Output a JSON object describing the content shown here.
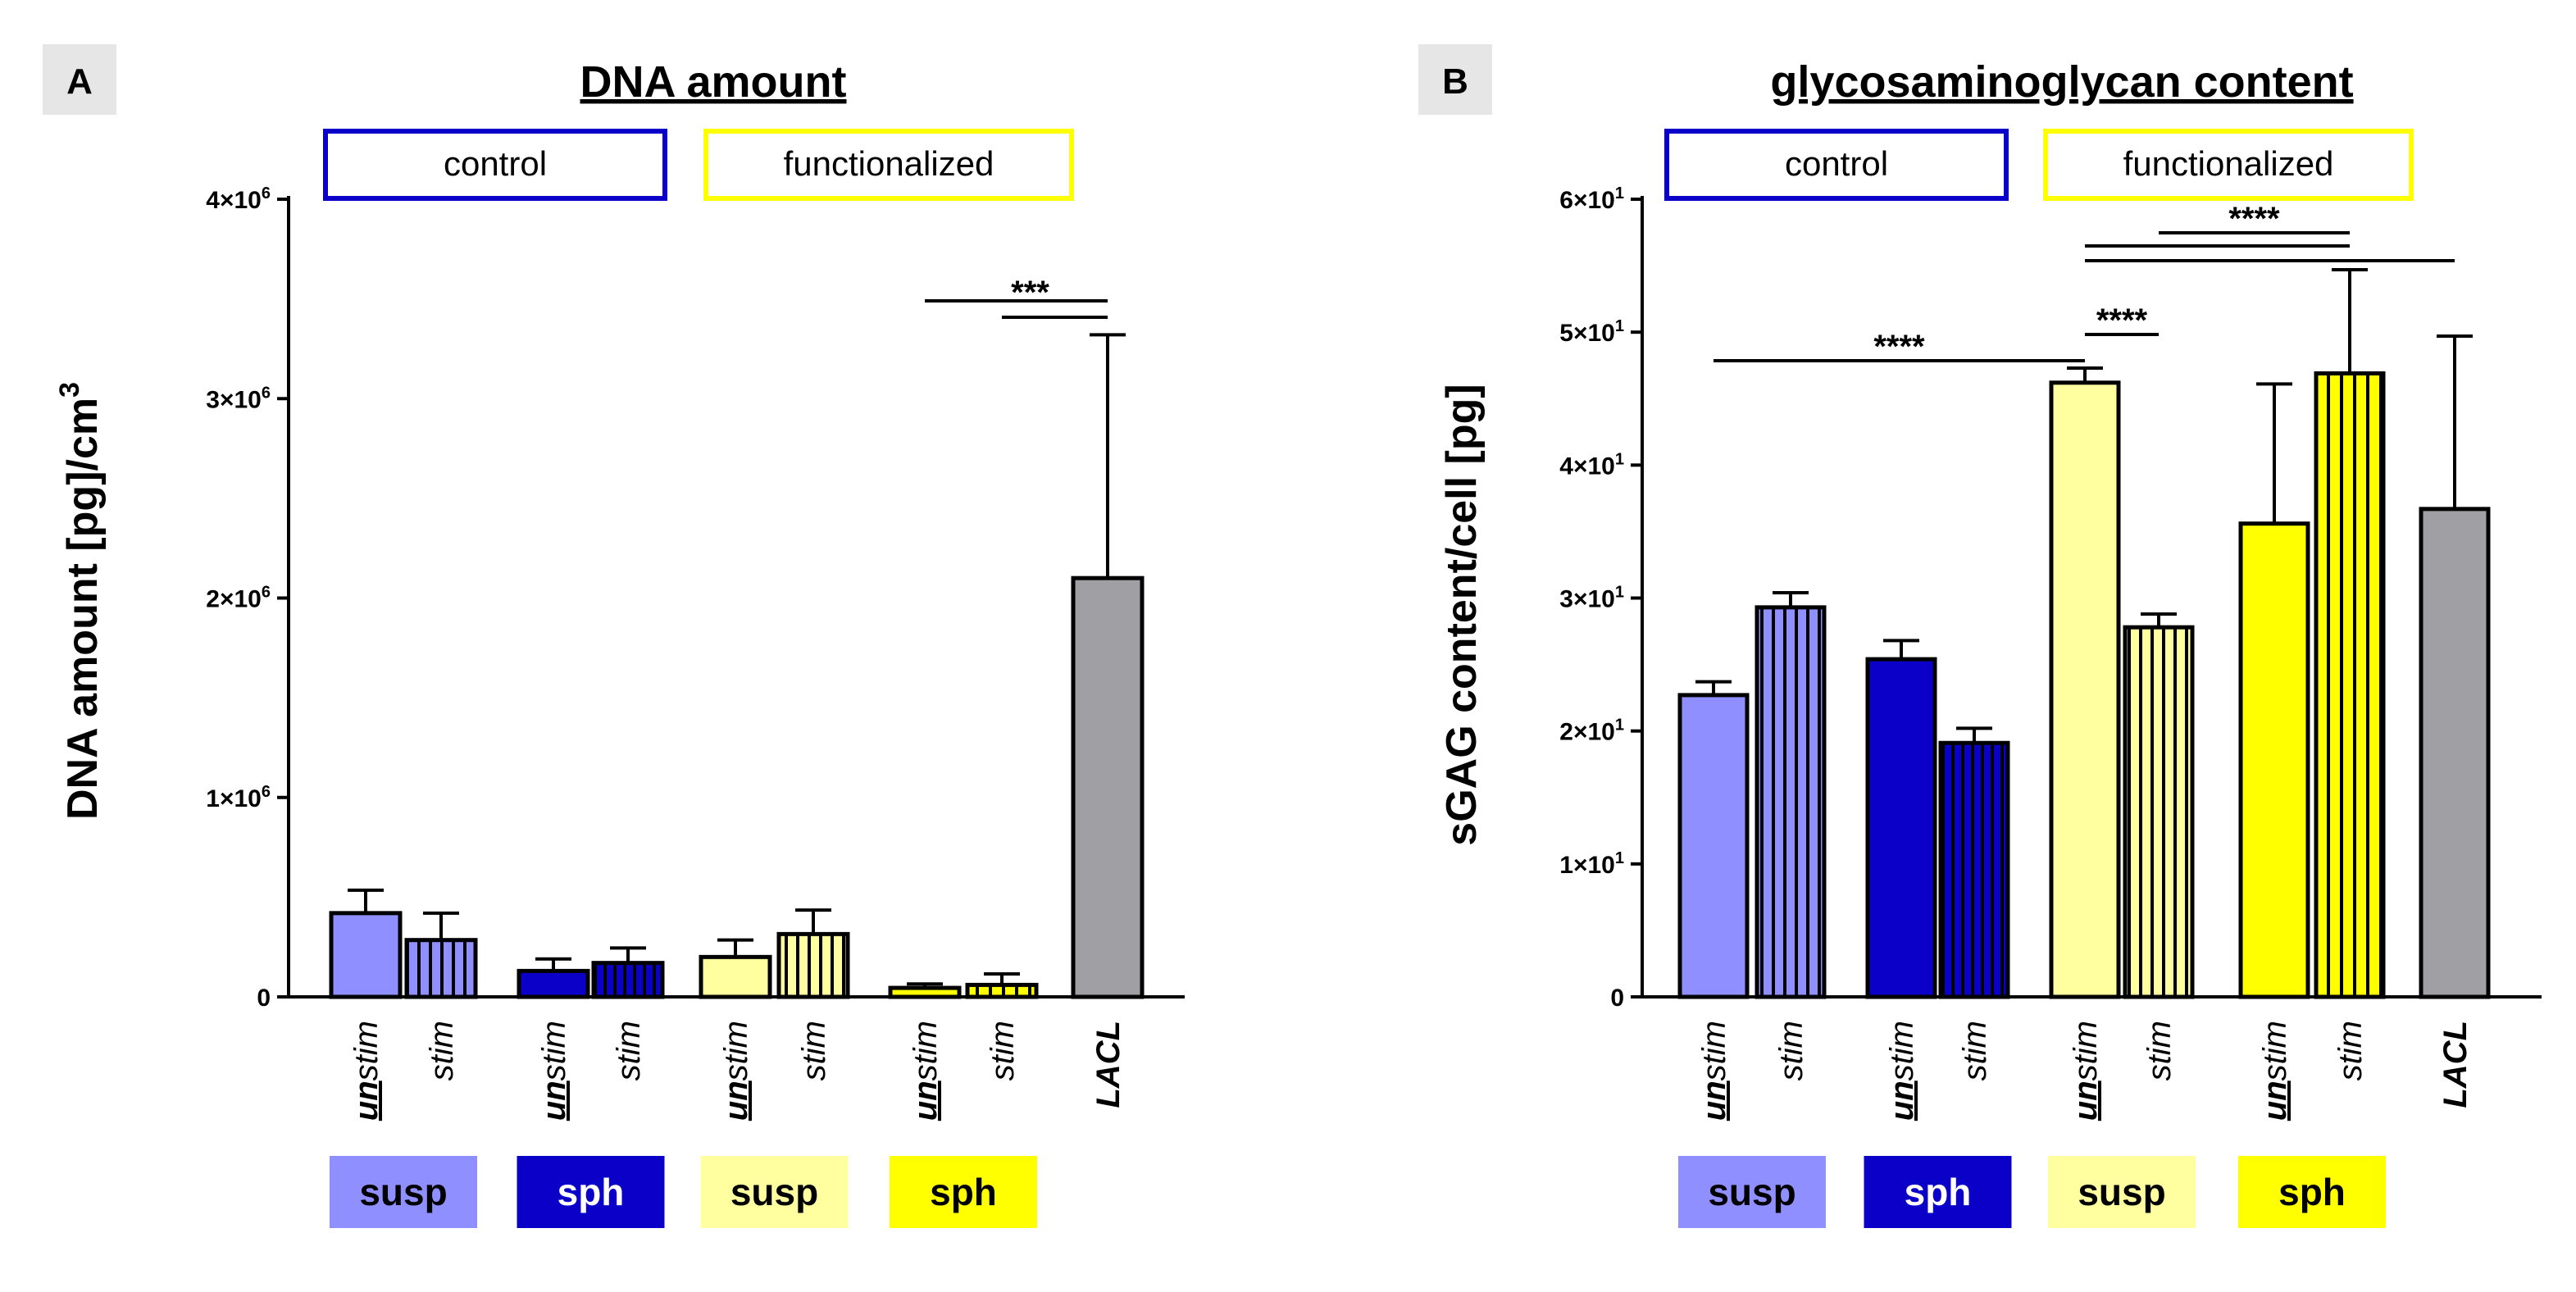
{
  "colors": {
    "light_blue": "#8F8FFF",
    "dark_blue": "#0A00C8",
    "light_yellow": "#FFFFA0",
    "yellow": "#FFFF00",
    "gray": "#A0A0A4",
    "control_border": "#0A00C8",
    "functionalized_border": "#FFFF00",
    "panel_label_bg": "#E6E6E6"
  },
  "group_labels": {
    "control": "control",
    "functionalized": "functionalized",
    "groups": [
      {
        "label": "susp",
        "color": "#8F8FFF",
        "text_color": "#000000"
      },
      {
        "label": "sph",
        "color": "#0A00C8",
        "text_color": "#FFFFFF"
      },
      {
        "label": "susp",
        "color": "#FFFFA0",
        "text_color": "#000000"
      },
      {
        "label": "sph",
        "color": "#FFFF00",
        "text_color": "#000000"
      }
    ]
  },
  "category_labels": {
    "un": "un",
    "stim": "stim",
    "lacl": "LACL"
  },
  "chart_data": [
    {
      "panel": "A",
      "type": "bar",
      "title": "DNA amount",
      "ylabel": "DNA amount [pg]/cm",
      "ylabel_sup": "3",
      "ylim": [
        0,
        4000000
      ],
      "ytick_labels": [
        "0",
        "1×10",
        "2×10",
        "3×10",
        "4×10"
      ],
      "ytick_exps": [
        "",
        "6",
        "6",
        "6",
        "6"
      ],
      "ytick_values": [
        0,
        1000000,
        2000000,
        3000000,
        4000000
      ],
      "categories": [
        "unstim susp control",
        "stim susp control",
        "unstim sph control",
        "stim sph control",
        "unstim susp functionalized",
        "stim susp functionalized",
        "unstim sph functionalized",
        "stim sph functionalized",
        "LACL"
      ],
      "values": [
        420000,
        285000,
        130000,
        170000,
        200000,
        315000,
        45000,
        60000,
        2100000
      ],
      "errors": [
        115000,
        135000,
        60000,
        75000,
        85000,
        120000,
        20000,
        55000,
        1220000
      ],
      "significance": [
        {
          "label": "***",
          "from": 7,
          "to": 9
        },
        {
          "label": "",
          "from": 8,
          "to": 9
        }
      ]
    },
    {
      "panel": "B",
      "type": "bar",
      "title": "glycosaminoglycan content",
      "ylabel": "sGAG content/cell [pg]",
      "ylim": [
        0,
        60
      ],
      "ytick_labels": [
        "0",
        "1×10",
        "2×10",
        "3×10",
        "4×10",
        "5×10",
        "6×10"
      ],
      "ytick_exps": [
        "",
        "1",
        "1",
        "1",
        "1",
        "1",
        "1"
      ],
      "ytick_values": [
        0,
        10,
        20,
        30,
        40,
        50,
        60
      ],
      "categories": [
        "unstim susp control",
        "stim susp control",
        "unstim sph control",
        "stim sph control",
        "unstim susp functionalized",
        "stim susp functionalized",
        "unstim sph functionalized",
        "stim sph functionalized",
        "LACL"
      ],
      "values": [
        22.7,
        29.3,
        25.4,
        19.1,
        46.2,
        27.8,
        35.6,
        46.9,
        36.7
      ],
      "errors": [
        1.0,
        1.1,
        1.4,
        1.1,
        1.1,
        1.0,
        10.5,
        7.8,
        13.0
      ],
      "significance": [
        {
          "label": "****",
          "from": 1,
          "to": 5
        },
        {
          "label": "****",
          "from": 5,
          "to": 6
        },
        {
          "label": "****",
          "from": 6,
          "to": 8
        },
        {
          "label": "",
          "from": 5,
          "to": 8
        },
        {
          "label": "",
          "from": 5,
          "to": 9
        }
      ]
    }
  ]
}
